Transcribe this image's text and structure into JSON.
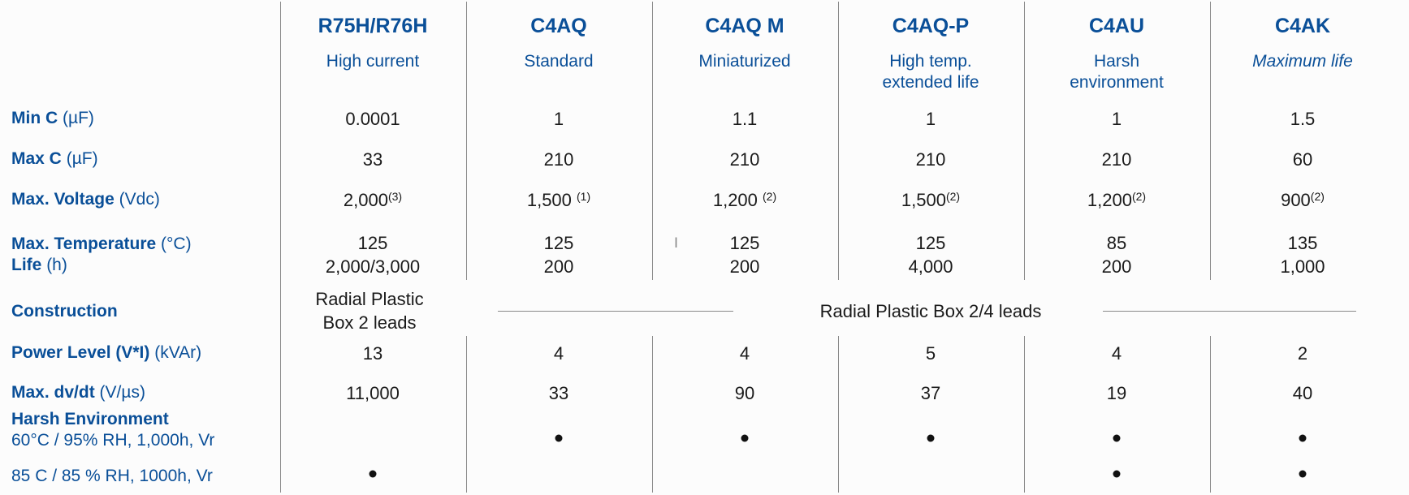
{
  "columns": [
    {
      "name": "R75H/R76H",
      "sub": [
        "High current"
      ]
    },
    {
      "name": "C4AQ",
      "sub": [
        "Standard"
      ]
    },
    {
      "name": "C4AQ M",
      "sub": [
        "Miniaturized"
      ]
    },
    {
      "name": "C4AQ-P",
      "sub": [
        "High temp.",
        "extended life"
      ]
    },
    {
      "name": "C4AU",
      "sub": [
        "Harsh",
        "environment"
      ]
    },
    {
      "name": "C4AK",
      "sub": [
        "Maximum life"
      ]
    }
  ],
  "rows": {
    "min_c": {
      "label": "Min C",
      "unit": "(µF)",
      "values": [
        "0.0001",
        "1",
        "1.1",
        "1",
        "1",
        "1.5"
      ]
    },
    "max_c": {
      "label": "Max C",
      "unit": "(µF)",
      "values": [
        "33",
        "210",
        "210",
        "210",
        "210",
        "60"
      ]
    },
    "max_voltage": {
      "label": "Max. Voltage",
      "unit": "(Vdc)",
      "values": [
        "2,000",
        "1,500 ",
        "1,200 ",
        "1,500",
        "1,200",
        "900"
      ],
      "notes": [
        "(3)",
        "(1)",
        "(2)",
        "(2)",
        "(2)",
        "(2)"
      ]
    },
    "max_temperature": {
      "label": "Max. Temperature",
      "unit": "(°C)",
      "values": [
        "125",
        "125",
        "125",
        "125",
        "85",
        "135"
      ]
    },
    "life": {
      "label": "Life",
      "unit": "(h)",
      "values": [
        "2,000/3,000",
        "200",
        "200",
        "4,000",
        "200",
        "1,000"
      ]
    },
    "construction": {
      "label": "Construction",
      "first": [
        "Radial Plastic",
        "Box 2 leads"
      ],
      "span": "Radial Plastic  Box 2/4 leads"
    },
    "power_level": {
      "label": "Power Level (V*I)",
      "unit": "(kVAr)",
      "values": [
        "13",
        "4",
        "4",
        "5",
        "4",
        "2"
      ]
    },
    "max_dvdt": {
      "label": "Max. dv/dt",
      "unit": "(V/µs)",
      "values": [
        "11,000",
        "33",
        "90",
        "37",
        "19",
        "40"
      ]
    },
    "harsh_env": {
      "label": "Harsh Environment",
      "cond1": "60°C / 95% RH, 1,000h, Vr",
      "cond1_marks": [
        false,
        true,
        true,
        true,
        true,
        true
      ],
      "cond2": "85 C / 85 % RH, 1000h, Vr",
      "cond2_marks": [
        true,
        false,
        false,
        false,
        true,
        true
      ]
    }
  }
}
